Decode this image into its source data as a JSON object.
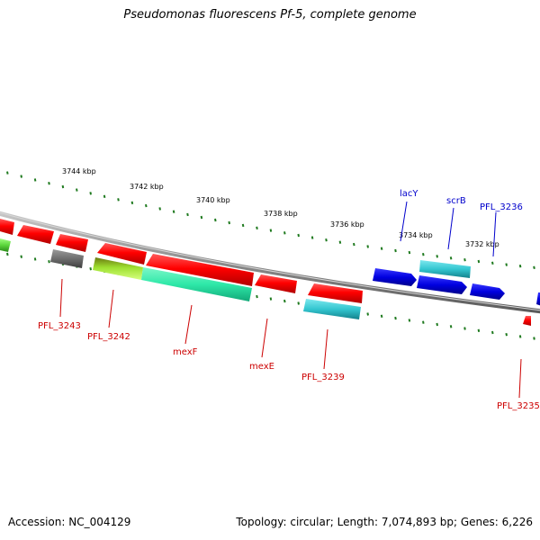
{
  "title": "Pseudomonas fluorescens Pf-5, complete genome",
  "footer": {
    "accession": "Accession: NC_004129",
    "topology": "Topology: circular; Length: 7,074,893 bp; Genes: 6,226"
  },
  "colors": {
    "backbone": "#8c8c8c",
    "tick": "#1f7a1f",
    "red_gene": "#ff0000",
    "blue_gene": "#0000e0",
    "cyan_gene": "#33c6d0",
    "gray_gene": "#6e6e6e",
    "teal_gene": "#2ee8a8",
    "lime_gene": "#b4ff3c",
    "red_label": "#cc0000",
    "blue_label": "#0000cc"
  },
  "ticks": {
    "labels": [
      "3744 kbp",
      "3742 kbp",
      "3740 kbp",
      "3738 kbp",
      "3736 kbp",
      "3734 kbp",
      "3732 kbp"
    ]
  },
  "genes": [
    {
      "label": "lacY",
      "color": "blue"
    },
    {
      "label": "scrB",
      "color": "blue"
    },
    {
      "label": "PFL_3236",
      "color": "blue"
    },
    {
      "label": "PFL_3243",
      "color": "red"
    },
    {
      "label": "PFL_3242",
      "color": "red"
    },
    {
      "label": "mexF",
      "color": "red"
    },
    {
      "label": "mexE",
      "color": "red"
    },
    {
      "label": "PFL_3239",
      "color": "red"
    },
    {
      "label": "PFL_3235",
      "color": "red"
    }
  ]
}
